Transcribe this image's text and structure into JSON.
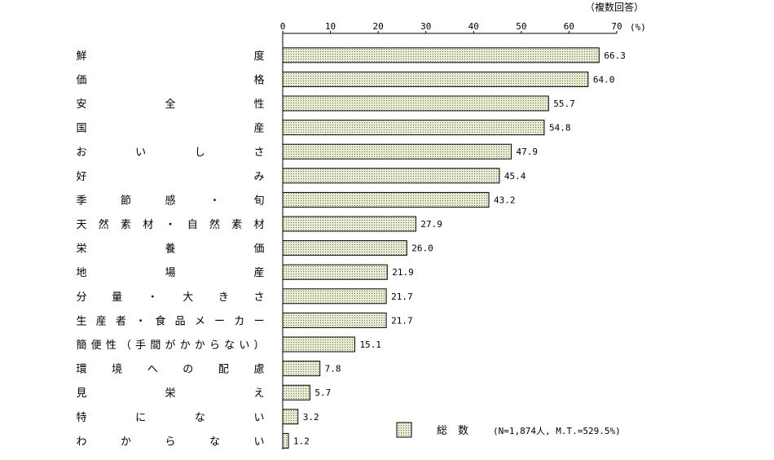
{
  "chart_data": {
    "type": "bar",
    "orientation": "horizontal",
    "header_note": "（複数回答）",
    "unit_label": "(%)",
    "xlim": [
      0,
      70
    ],
    "x_ticks": [
      0,
      10,
      20,
      30,
      40,
      50,
      60,
      70
    ],
    "categories": [
      "鮮度",
      "価格",
      "安全性",
      "国産",
      "おいしさ",
      "好み",
      "季節感・旬",
      "天然素材・自然素材",
      "栄養価",
      "地場産",
      "分量・大きさ",
      "生産者・食品メーカー",
      "簡便性（手間がかからない）",
      "環境への配慮",
      "見栄え",
      "特にない",
      "わからない"
    ],
    "values": [
      66.3,
      64.0,
      55.7,
      54.8,
      47.9,
      45.4,
      43.2,
      27.9,
      26.0,
      21.9,
      21.7,
      21.7,
      15.1,
      7.8,
      5.7,
      3.2,
      1.2
    ],
    "value_labels": [
      "66.3",
      "64.0",
      "55.7",
      "54.8",
      "47.9",
      "45.4",
      "43.2",
      "27.9",
      "26.0",
      "21.9",
      "21.7",
      "21.7",
      "15.1",
      "7.8",
      "5.7",
      "3.2",
      "1.2"
    ],
    "series": [
      {
        "name": "総　数",
        "note": "(N=1,874人, M.T.=529.5%)"
      }
    ],
    "legend_position": "bottom-right",
    "grid": false,
    "bar_fill": "#e6ecd2",
    "bar_stroke": "#000000"
  }
}
